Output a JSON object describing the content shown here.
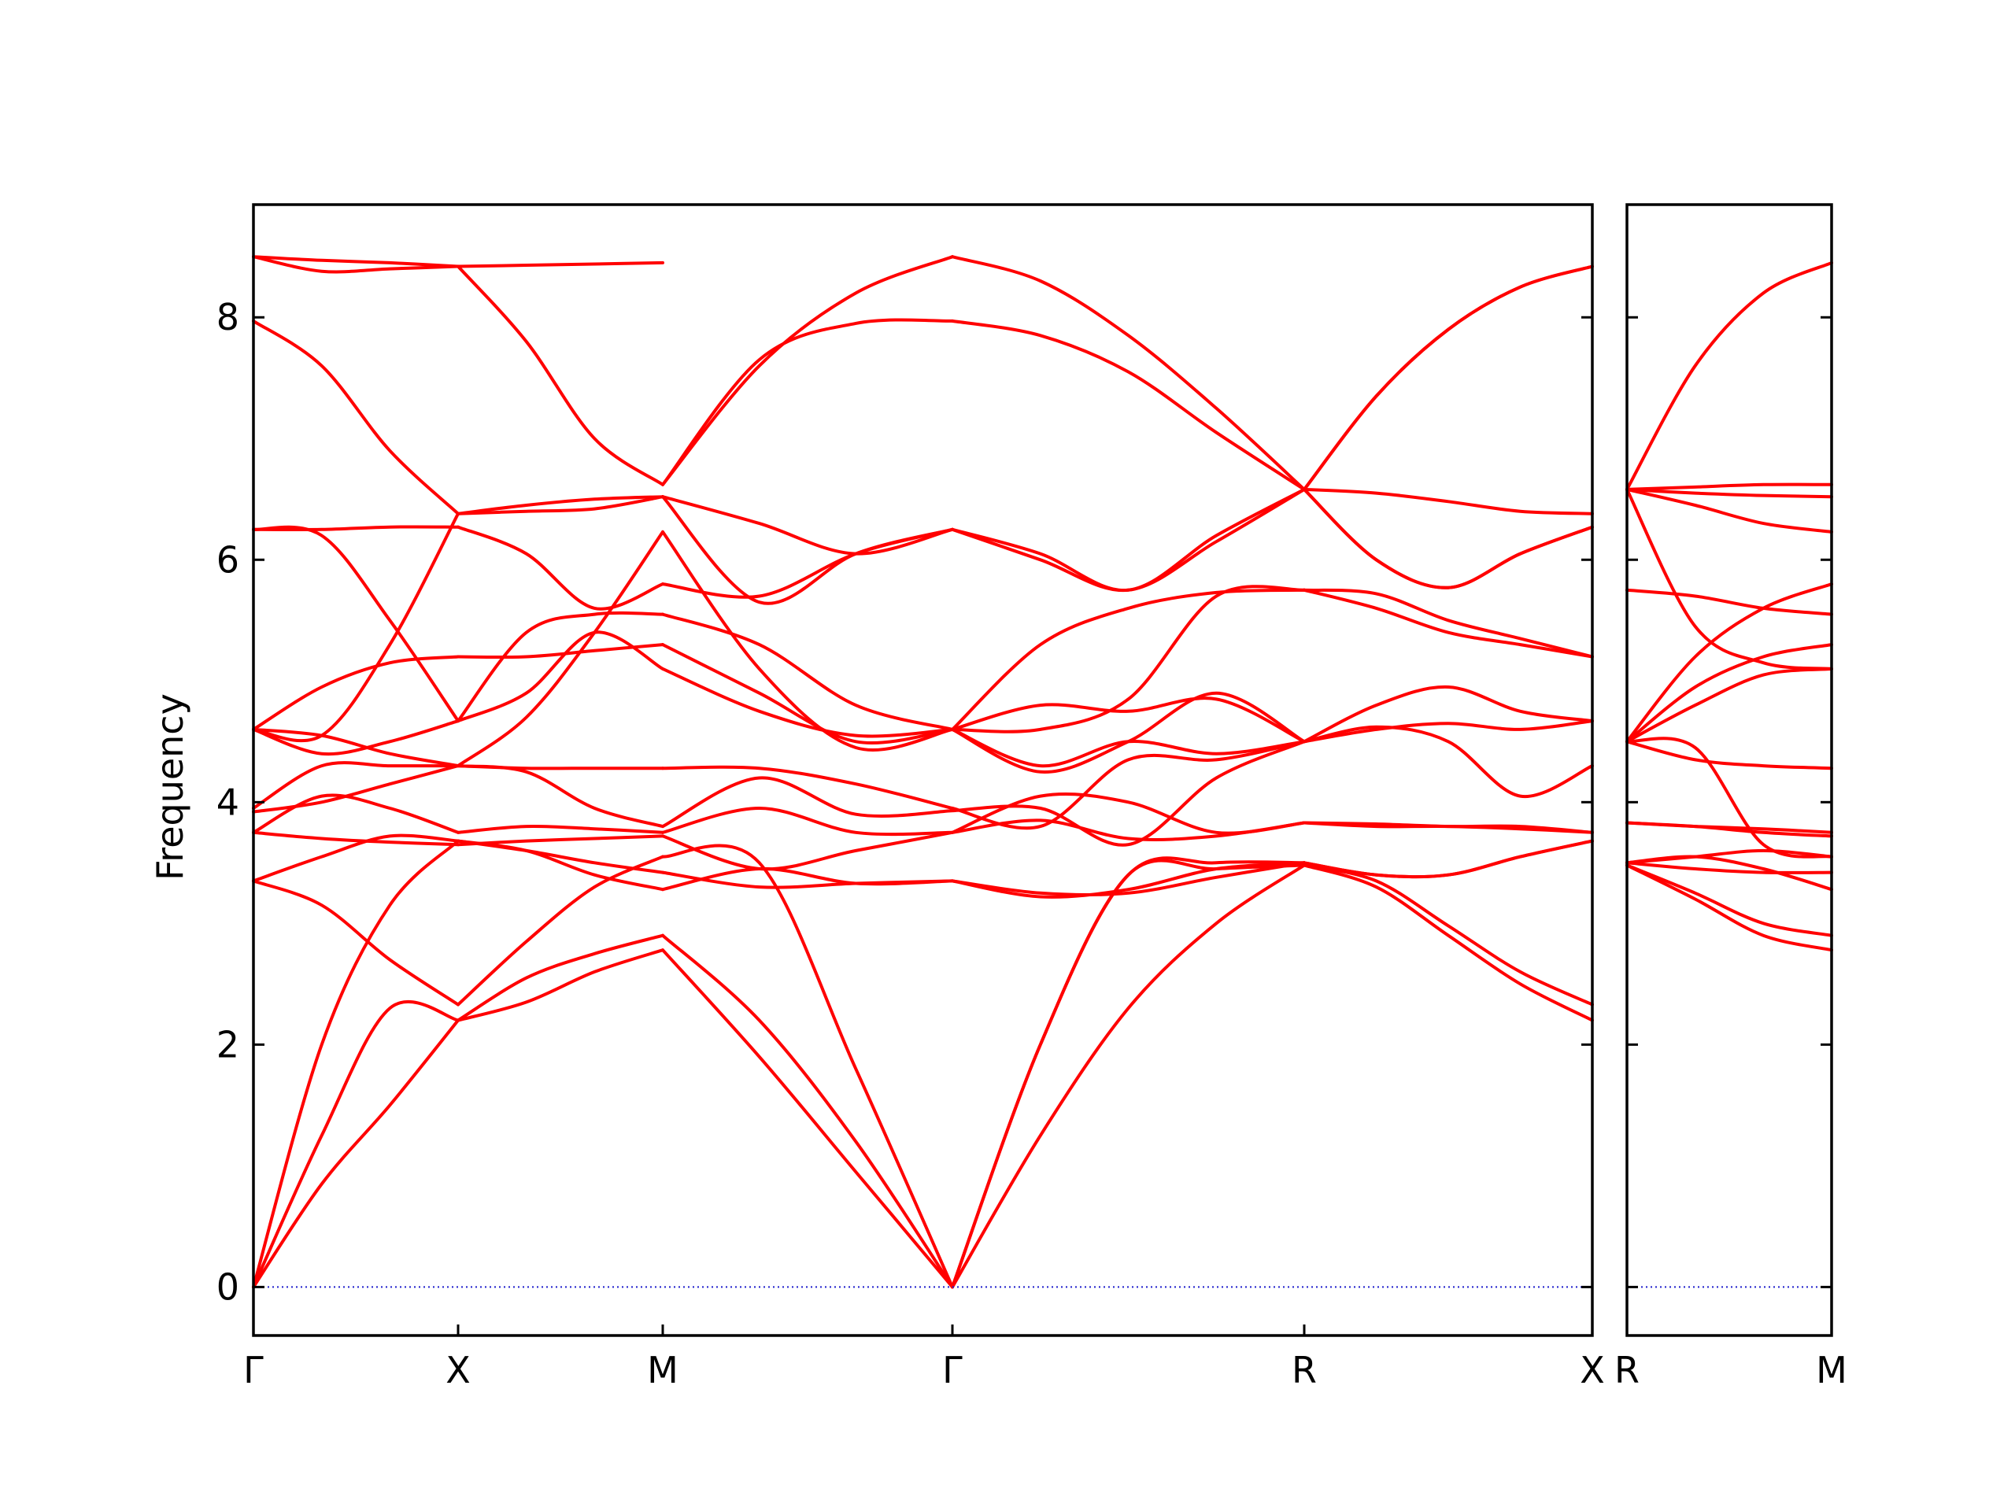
{
  "chart_data": {
    "type": "line",
    "ylabel": "Frequency",
    "ylim": [
      -0.4,
      8.93
    ],
    "yticks": [
      0,
      2,
      4,
      6,
      8
    ],
    "grid": false,
    "line_color": "#ff0000",
    "zero_line_color": "#1f1fcc",
    "panels": [
      {
        "xlabels": [
          "Γ",
          "X",
          "M",
          "Γ",
          "R",
          "X"
        ],
        "segments": [
          {
            "from": "Γ",
            "to": "X",
            "bands": [
              [
                0,
                0.85,
                1.5,
                2.2
              ],
              [
                0,
                1.25,
                2.3,
                2.2
              ],
              [
                0,
                2.0,
                3.15,
                3.68
              ],
              [
                3.35,
                3.15,
                2.7,
                2.33
              ],
              [
                3.35,
                3.55,
                3.72,
                3.68
              ],
              [
                3.75,
                3.7,
                3.67,
                3.65
              ],
              [
                3.75,
                4.05,
                3.95,
                3.75
              ],
              [
                3.92,
                4.0,
                4.15,
                4.3
              ],
              [
                3.95,
                4.3,
                4.3,
                4.3
              ],
              [
                4.6,
                4.55,
                5.3,
                6.38
              ],
              [
                4.6,
                4.55,
                4.4,
                4.3
              ],
              [
                4.6,
                4.95,
                5.15,
                5.2
              ],
              [
                4.6,
                4.4,
                4.5,
                4.67
              ],
              [
                6.25,
                6.2,
                5.5,
                4.67
              ],
              [
                6.25,
                6.25,
                6.27,
                6.27
              ],
              [
                7.97,
                7.6,
                6.9,
                6.38
              ],
              [
                8.5,
                8.38,
                8.4,
                8.42
              ],
              [
                8.5,
                8.47,
                8.45,
                8.42
              ]
            ]
          },
          {
            "from": "X",
            "to": "M",
            "bands": [
              [
                2.2,
                2.35,
                2.6,
                2.78
              ],
              [
                2.2,
                2.55,
                2.75,
                2.9
              ],
              [
                2.33,
                2.85,
                3.3,
                3.55
              ],
              [
                3.68,
                3.6,
                3.4,
                3.28
              ],
              [
                3.68,
                3.6,
                3.5,
                3.42
              ],
              [
                3.65,
                3.68,
                3.7,
                3.72
              ],
              [
                3.75,
                3.8,
                3.78,
                3.75
              ],
              [
                4.3,
                4.25,
                3.95,
                3.8
              ],
              [
                4.3,
                4.28,
                4.28,
                4.28
              ],
              [
                4.67,
                5.4,
                5.55,
                5.55
              ],
              [
                4.67,
                4.9,
                5.4,
                5.1
              ],
              [
                5.2,
                5.2,
                5.25,
                5.3
              ],
              [
                4.3,
                4.7,
                5.4,
                6.23
              ],
              [
                6.27,
                6.05,
                5.6,
                5.8
              ],
              [
                6.38,
                6.4,
                6.42,
                6.52
              ],
              [
                6.38,
                6.45,
                6.5,
                6.52
              ],
              [
                8.42,
                7.8,
                7.0,
                6.62
              ],
              [
                8.42,
                8.43,
                8.44,
                8.45
              ]
            ]
          },
          {
            "from": "M",
            "to": "Γ",
            "bands": [
              [
                2.78,
                1.9,
                0.95,
                0
              ],
              [
                2.9,
                2.2,
                1.2,
                0
              ],
              [
                3.55,
                3.5,
                1.8,
                0
              ],
              [
                3.28,
                3.45,
                3.33,
                3.35
              ],
              [
                3.42,
                3.3,
                3.33,
                3.35
              ],
              [
                3.72,
                3.45,
                3.6,
                3.75
              ],
              [
                3.75,
                3.95,
                3.75,
                3.75
              ],
              [
                3.8,
                4.2,
                3.9,
                3.93
              ],
              [
                4.28,
                4.28,
                4.15,
                3.95
              ],
              [
                5.55,
                5.3,
                4.8,
                4.6
              ],
              [
                5.1,
                4.75,
                4.55,
                4.6
              ],
              [
                5.3,
                4.9,
                4.5,
                4.6
              ],
              [
                6.23,
                5.1,
                4.45,
                4.6
              ],
              [
                5.8,
                5.7,
                6.05,
                6.25
              ],
              [
                6.52,
                5.65,
                6.05,
                6.25
              ],
              [
                6.52,
                6.3,
                6.05,
                6.25
              ],
              [
                6.62,
                7.65,
                7.95,
                7.97
              ],
              [
                6.62,
                7.6,
                8.2,
                8.5
              ]
            ]
          },
          {
            "from": "Γ",
            "to": "R",
            "bands": [
              [
                0,
                1.25,
                2.3,
                3.0,
                3.48
              ],
              [
                0,
                2.0,
                3.4,
                3.45,
                3.48
              ],
              [
                0,
                2.0,
                3.4,
                3.5,
                3.5
              ],
              [
                3.35,
                3.22,
                3.28,
                3.45,
                3.5
              ],
              [
                3.35,
                3.25,
                3.25,
                3.38,
                3.5
              ],
              [
                3.75,
                3.85,
                3.7,
                3.72,
                3.83
              ],
              [
                3.75,
                4.05,
                4.0,
                3.75,
                3.83
              ],
              [
                3.93,
                3.95,
                3.65,
                4.2,
                4.5
              ],
              [
                3.95,
                3.8,
                4.35,
                4.35,
                4.5
              ],
              [
                4.6,
                4.8,
                4.75,
                4.85,
                4.5
              ],
              [
                4.6,
                4.3,
                4.5,
                4.4,
                4.5
              ],
              [
                4.6,
                4.6,
                4.85,
                5.7,
                5.75
              ],
              [
                4.6,
                4.25,
                4.5,
                4.9,
                4.5
              ],
              [
                6.25,
                6.05,
                5.75,
                6.2,
                6.58
              ],
              [
                6.25,
                6.0,
                5.75,
                6.15,
                6.58
              ],
              [
                4.6,
                5.3,
                5.6,
                5.73,
                5.75
              ],
              [
                7.97,
                7.85,
                7.55,
                7.05,
                6.58
              ],
              [
                8.5,
                8.3,
                7.85,
                7.25,
                6.58
              ]
            ]
          },
          {
            "from": "R",
            "to": "X",
            "bands": [
              [
                3.48,
                3.3,
                2.9,
                2.5,
                2.2
              ],
              [
                3.48,
                3.35,
                2.98,
                2.6,
                2.33
              ],
              [
                3.5,
                3.4,
                3.4,
                3.55,
                3.68
              ],
              [
                3.5,
                3.4,
                3.4,
                3.55,
                3.68
              ],
              [
                3.83,
                3.8,
                3.8,
                3.78,
                3.75
              ],
              [
                3.83,
                3.82,
                3.8,
                3.8,
                3.75
              ],
              [
                4.5,
                4.6,
                4.65,
                4.6,
                4.67
              ],
              [
                4.5,
                4.62,
                4.5,
                4.05,
                4.3
              ],
              [
                4.5,
                4.8,
                4.95,
                4.75,
                4.67
              ],
              [
                5.75,
                5.6,
                5.4,
                5.3,
                5.2
              ],
              [
                5.75,
                5.72,
                5.5,
                5.35,
                5.2
              ],
              [
                6.58,
                6.55,
                6.48,
                6.4,
                6.38
              ],
              [
                6.58,
                6.0,
                5.77,
                6.05,
                6.27
              ],
              [
                6.58,
                6.0,
                5.77,
                6.05,
                6.27
              ],
              [
                6.58,
                7.35,
                7.9,
                8.25,
                8.42
              ],
              [
                6.58,
                7.35,
                7.9,
                8.25,
                8.42
              ]
            ]
          }
        ]
      },
      {
        "xlabels": [
          "R",
          "M"
        ],
        "segments": [
          {
            "from": "R",
            "to": "M",
            "bands": [
              [
                3.48,
                3.2,
                2.9,
                2.78
              ],
              [
                3.48,
                3.25,
                3.0,
                2.9
              ],
              [
                3.5,
                3.55,
                3.6,
                3.55
              ],
              [
                3.5,
                3.45,
                3.42,
                3.42
              ],
              [
                3.5,
                3.55,
                3.45,
                3.28
              ],
              [
                3.83,
                3.8,
                3.75,
                3.72
              ],
              [
                3.83,
                3.8,
                3.78,
                3.75
              ],
              [
                4.5,
                4.45,
                3.65,
                3.55
              ],
              [
                4.5,
                4.35,
                4.3,
                4.28
              ],
              [
                4.5,
                4.8,
                5.05,
                5.1
              ],
              [
                4.5,
                4.95,
                5.2,
                5.3
              ],
              [
                4.5,
                5.2,
                5.6,
                5.8
              ],
              [
                5.75,
                5.7,
                5.6,
                5.55
              ],
              [
                6.58,
                5.45,
                5.15,
                5.1
              ],
              [
                6.58,
                6.55,
                6.53,
                6.52
              ],
              [
                6.58,
                6.45,
                6.3,
                6.23
              ],
              [
                6.58,
                6.6,
                6.62,
                6.62
              ],
              [
                6.58,
                7.6,
                8.2,
                8.45
              ]
            ]
          }
        ]
      }
    ]
  }
}
